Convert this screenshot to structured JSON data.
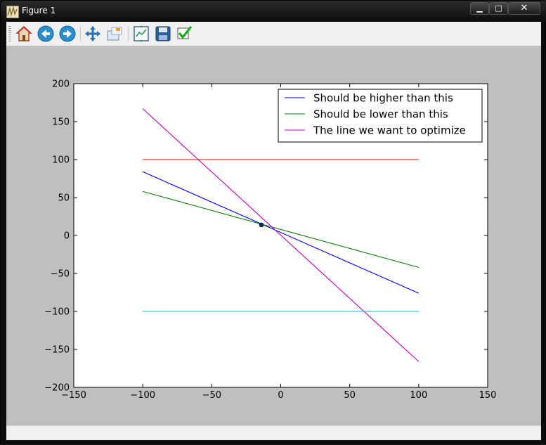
{
  "window": {
    "title": "Figure 1",
    "buttons": {
      "minimize": "▁",
      "maximize": "□",
      "close": "✕"
    }
  },
  "toolbar": {
    "icons": [
      "home-icon",
      "back-icon",
      "forward-icon",
      "pan-icon",
      "zoom-icon",
      "subplots-icon",
      "save-icon",
      "check-icon"
    ]
  },
  "colors": {
    "blue": "#0000ff",
    "green": "#008000",
    "magenta": "#c000c0",
    "red": "#ff0000",
    "cyan": "#00bfbf",
    "point": "#003050",
    "figure_bg": "#bfbfbf"
  },
  "chart_data": {
    "type": "line",
    "title": "",
    "xlabel": "",
    "ylabel": "",
    "xlim": [
      -150,
      150
    ],
    "ylim": [
      -200,
      200
    ],
    "xticks": [
      -150,
      -100,
      -50,
      0,
      50,
      100,
      150
    ],
    "yticks": [
      -200,
      -150,
      -100,
      -50,
      0,
      50,
      100,
      150,
      200
    ],
    "xtick_labels": [
      "−150",
      "−100",
      "−50",
      "0",
      "50",
      "100",
      "150"
    ],
    "ytick_labels": [
      "−200",
      "−150",
      "−100",
      "−50",
      "0",
      "50",
      "100",
      "150",
      "200"
    ],
    "grid": false,
    "legend_position": "top-right",
    "series": [
      {
        "name": "Should be higher than this",
        "color": "#0000ff",
        "x": [
          -100,
          100
        ],
        "y": [
          84,
          -76
        ]
      },
      {
        "name": "Should be lower than this",
        "color": "#008000",
        "x": [
          -100,
          100
        ],
        "y": [
          58,
          -42
        ]
      },
      {
        "name": "The line we want to optimize",
        "color": "#c000c0",
        "x": [
          -100,
          100
        ],
        "y": [
          167,
          -166
        ]
      },
      {
        "color": "#ff0000",
        "x": [
          -100,
          100
        ],
        "y": [
          100,
          100
        ]
      },
      {
        "color": "#00bfbf",
        "x": [
          -100,
          100
        ],
        "y": [
          -100,
          -100
        ]
      }
    ],
    "points": [
      {
        "x": -14,
        "y": 14,
        "color": "#003050"
      }
    ]
  }
}
